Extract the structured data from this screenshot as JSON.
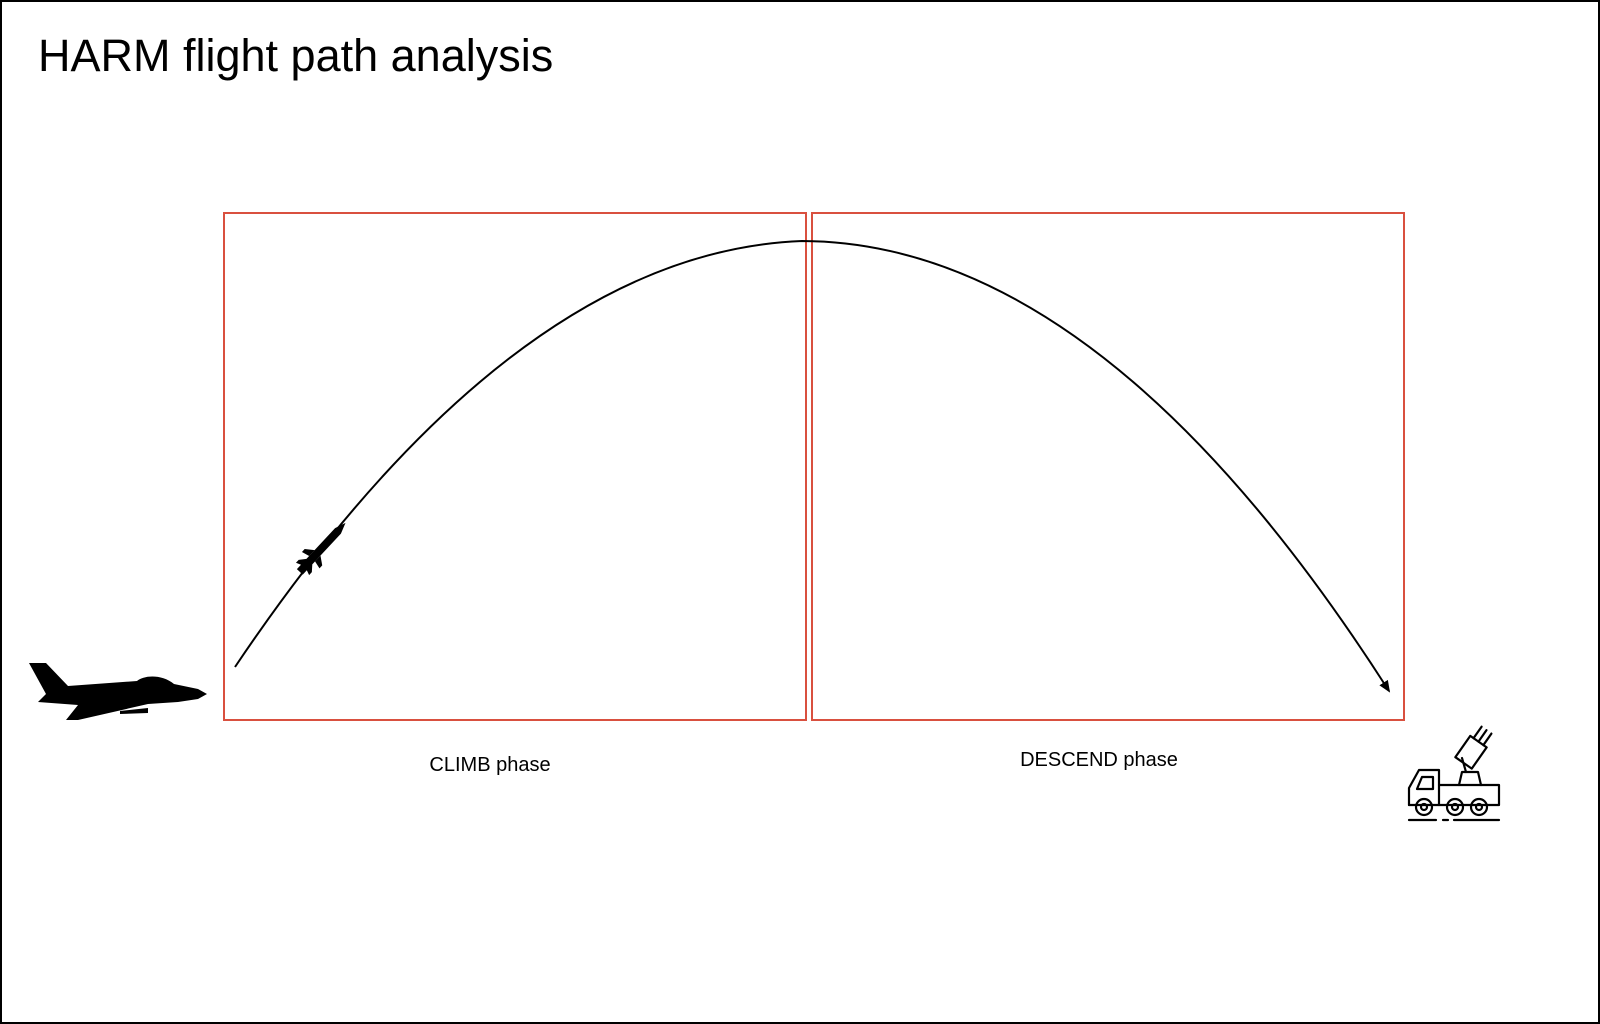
{
  "title": "HARM flight path analysis",
  "phases": [
    {
      "name": "climb",
      "label": "CLIMB phase"
    },
    {
      "name": "descend",
      "label": "DESCEND phase"
    }
  ],
  "icons": {
    "launcher": "jet-aircraft-icon",
    "missile": "missile-icon",
    "target": "radar-launcher-truck-icon"
  },
  "colors": {
    "phase_box": "#d9503f",
    "path": "#000000",
    "text": "#000000",
    "icon": "#000000"
  }
}
